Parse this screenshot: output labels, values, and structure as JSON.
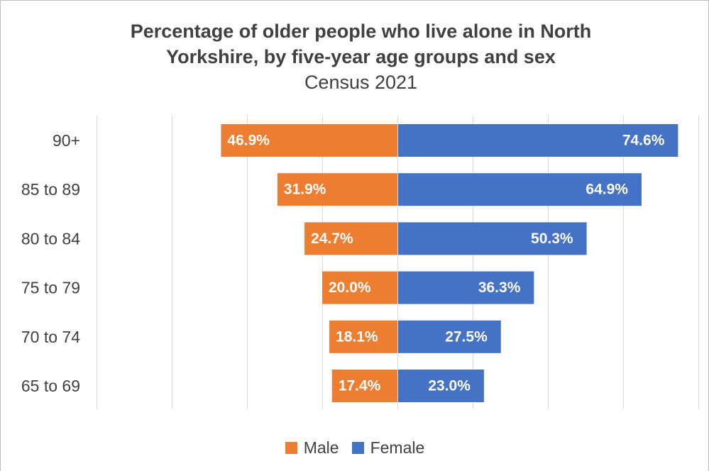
{
  "chart_data": {
    "type": "bar",
    "orientation": "horizontal",
    "layout": "diverging",
    "title": "Percentage of older people who live alone in North Yorkshire, by five-year age groups and sex",
    "title_lines": [
      "Percentage of older people who live alone in North",
      "Yorkshire, by five-year age groups and sex"
    ],
    "subtitle": "Census 2021",
    "categories": [
      "90+",
      "85 to 89",
      "80 to 84",
      "75 to 79",
      "70 to 74",
      "65 to 69"
    ],
    "series": [
      {
        "name": "Male",
        "color": "#ED7D31",
        "values": [
          46.9,
          31.9,
          24.7,
          20.0,
          18.1,
          17.4
        ],
        "labels": [
          "46.9%",
          "31.9%",
          "24.7%",
          "20.0%",
          "18.1%",
          "17.4%"
        ]
      },
      {
        "name": "Female",
        "color": "#4472C4",
        "values": [
          74.6,
          64.9,
          50.3,
          36.3,
          27.5,
          23.0
        ],
        "labels": [
          "74.6%",
          "64.9%",
          "50.3%",
          "36.3%",
          "27.5%",
          "23.0%"
        ]
      }
    ],
    "xlim": [
      -80,
      80
    ],
    "gridlines_at": [
      -80,
      -60,
      -40,
      -20,
      0,
      20,
      40,
      60,
      80
    ],
    "grid": "vertical",
    "legend_position": "bottom",
    "axis_labels_visible": false
  }
}
